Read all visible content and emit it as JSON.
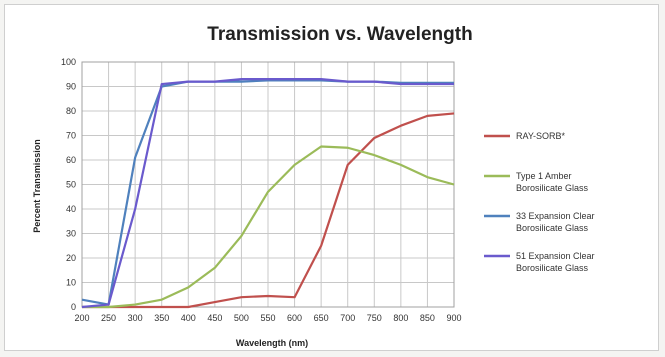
{
  "chart_data": {
    "type": "line",
    "title": "Transmission vs. Wavelength",
    "xlabel": "Wavelength (nm)",
    "ylabel": "Percent Transmission",
    "x": [
      200,
      250,
      300,
      350,
      400,
      450,
      500,
      550,
      600,
      650,
      700,
      750,
      800,
      850,
      900
    ],
    "xlim": [
      200,
      900
    ],
    "ylim": [
      0,
      100
    ],
    "yticks": [
      0,
      10,
      20,
      30,
      40,
      50,
      60,
      70,
      80,
      90,
      100
    ],
    "grid": true,
    "legend_position": "right",
    "series": [
      {
        "name": "RAY-SORB*",
        "legend_lines": [
          "RAY-SORB*"
        ],
        "color": "#c0504d",
        "values": [
          0,
          0,
          0,
          0,
          0,
          2,
          4,
          4.5,
          4,
          25,
          58,
          69,
          74,
          78,
          79
        ]
      },
      {
        "name": "Type 1 Amber Borosilicate Glass",
        "legend_lines": [
          "Type 1 Amber",
          "Borosilicate Glass"
        ],
        "color": "#9bbb59",
        "values": [
          0,
          0,
          1,
          3,
          8,
          16,
          29,
          47,
          58,
          65.5,
          65,
          62,
          58,
          53,
          50
        ]
      },
      {
        "name": "33 Expansion Clear Borosilicate Glass",
        "legend_lines": [
          "33 Expansion Clear",
          "Borosilicate Glass"
        ],
        "color": "#4f81bd",
        "values": [
          3,
          1,
          61,
          90,
          92,
          92,
          92,
          92.5,
          92.5,
          92.5,
          92,
          92,
          91.5,
          91.5,
          91.5
        ]
      },
      {
        "name": "51 Expansion Clear Borosilicate Glass",
        "legend_lines": [
          "51 Expansion Clear",
          "Borosilicate Glass"
        ],
        "color": "#6a5acd",
        "values": [
          0,
          1,
          40,
          91,
          92,
          92,
          93,
          93,
          93,
          93,
          92,
          92,
          91,
          91,
          91
        ]
      }
    ]
  }
}
